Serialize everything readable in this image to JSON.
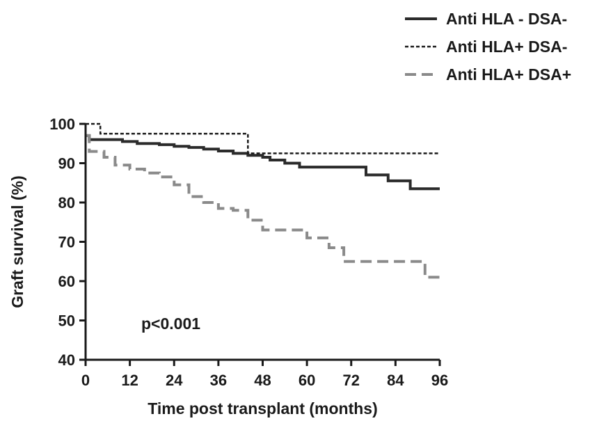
{
  "chart_data": {
    "type": "line",
    "subtype": "step (Kaplan-Meier survival)",
    "xlabel": "Time post transplant (months)",
    "ylabel": "Graft survival (%)",
    "xlim": [
      0,
      96
    ],
    "ylim": [
      40,
      100
    ],
    "x_ticks": [
      "0",
      "12",
      "24",
      "36",
      "48",
      "60",
      "72",
      "84",
      "96"
    ],
    "y_ticks": [
      "40",
      "50",
      "60",
      "70",
      "80",
      "90",
      "100"
    ],
    "grid": false,
    "legend_position": "top-right",
    "annotation": "p<0.001",
    "series": [
      {
        "name": "Anti HLA - DSA-",
        "style": "solid",
        "color": "#2b2b2b",
        "x": [
          0,
          1,
          7,
          10,
          14,
          20,
          24,
          28,
          32,
          36,
          40,
          44,
          48,
          50,
          54,
          58,
          70,
          76,
          82,
          88,
          96
        ],
        "y": [
          97,
          96,
          96,
          95.5,
          95,
          94.7,
          94.3,
          94,
          93.6,
          93.1,
          92.5,
          92,
          91.5,
          90.8,
          90,
          89,
          89,
          87,
          85.5,
          83.5,
          83.5
        ]
      },
      {
        "name": "Anti HLA+ DSA-",
        "style": "dotted",
        "color": "#1a1a1a",
        "x": [
          0,
          4,
          44,
          96
        ],
        "y": [
          100,
          97.5,
          92.5,
          92.5
        ]
      },
      {
        "name": "Anti HLA+ DSA+",
        "style": "dashed",
        "color": "#8a8a8a",
        "x": [
          0,
          1,
          5,
          8,
          12,
          16,
          20,
          24,
          28,
          32,
          36,
          40,
          44,
          48,
          52,
          60,
          66,
          70,
          76,
          82,
          88,
          92,
          96
        ],
        "y": [
          97,
          93,
          91.5,
          89.5,
          88.5,
          87.5,
          86.5,
          84.5,
          81.5,
          80,
          78.5,
          78,
          75.5,
          73,
          73,
          71,
          68.5,
          65,
          65,
          65,
          65,
          61,
          61
        ]
      }
    ]
  }
}
